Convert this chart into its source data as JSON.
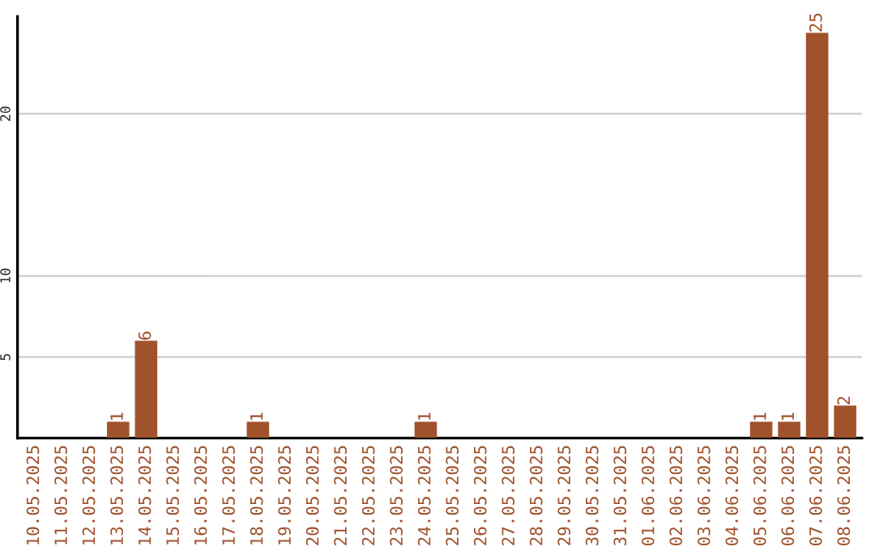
{
  "chart_data": {
    "type": "bar",
    "categories": [
      "10.05.2025",
      "11.05.2025",
      "12.05.2025",
      "13.05.2025",
      "14.05.2025",
      "15.05.2025",
      "16.05.2025",
      "17.05.2025",
      "18.05.2025",
      "19.05.2025",
      "20.05.2025",
      "21.05.2025",
      "22.05.2025",
      "23.05.2025",
      "24.05.2025",
      "25.05.2025",
      "26.05.2025",
      "27.05.2025",
      "28.05.2025",
      "29.05.2025",
      "30.05.2025",
      "31.05.2025",
      "01.06.2025",
      "02.06.2025",
      "03.06.2025",
      "04.06.2025",
      "05.06.2025",
      "06.06.2025",
      "07.06.2025",
      "08.06.2025"
    ],
    "values": [
      0,
      0,
      0,
      1,
      6,
      0,
      0,
      0,
      1,
      0,
      0,
      0,
      0,
      0,
      1,
      0,
      0,
      0,
      0,
      0,
      0,
      0,
      0,
      0,
      0,
      0,
      1,
      1,
      25,
      2
    ],
    "value_labels": [
      null,
      null,
      null,
      "1",
      "6",
      null,
      null,
      null,
      "1",
      null,
      null,
      null,
      null,
      null,
      "1",
      null,
      null,
      null,
      null,
      null,
      null,
      null,
      null,
      null,
      null,
      null,
      "1",
      "1",
      "25",
      "2"
    ],
    "color": "#a0522d",
    "ylim": [
      0,
      26
    ],
    "yticks": [
      5,
      10,
      20
    ],
    "grid": "y",
    "legend": false
  }
}
